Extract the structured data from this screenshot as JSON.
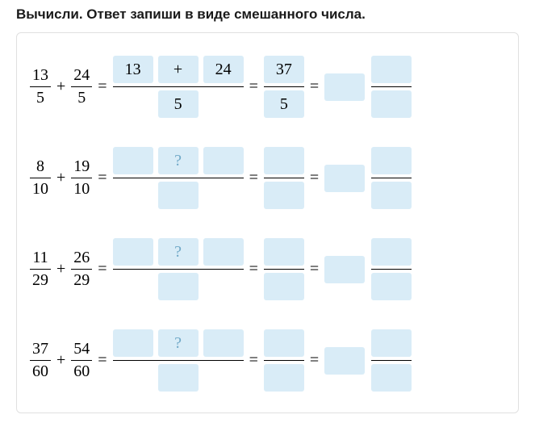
{
  "instruction": "Вычисли. Ответ запиши в виде смешанного числа.",
  "qmark": "?",
  "rows": [
    {
      "a_num": "13",
      "a_den": "5",
      "b_num": "24",
      "b_den": "5",
      "sum_a": "13",
      "sum_op": "+",
      "sum_b": "24",
      "sum_den": "5",
      "res_num": "37",
      "res_den": "5",
      "mix_whole": "",
      "mix_num": "",
      "mix_den": "",
      "filled": true
    },
    {
      "a_num": "8",
      "a_den": "10",
      "b_num": "19",
      "b_den": "10",
      "sum_a": "",
      "sum_op": "?",
      "sum_b": "",
      "sum_den": "",
      "res_num": "",
      "res_den": "",
      "mix_whole": "",
      "mix_num": "",
      "mix_den": "",
      "filled": false
    },
    {
      "a_num": "11",
      "a_den": "29",
      "b_num": "26",
      "b_den": "29",
      "sum_a": "",
      "sum_op": "?",
      "sum_b": "",
      "sum_den": "",
      "res_num": "",
      "res_den": "",
      "mix_whole": "",
      "mix_num": "",
      "mix_den": "",
      "filled": false
    },
    {
      "a_num": "37",
      "a_den": "60",
      "b_num": "54",
      "b_den": "60",
      "sum_a": "",
      "sum_op": "?",
      "sum_b": "",
      "sum_den": "",
      "res_num": "",
      "res_den": "",
      "mix_whole": "",
      "mix_num": "",
      "mix_den": "",
      "filled": false
    }
  ],
  "colors": {
    "box_bg": "#d9ecf7",
    "card_border": "#e0e0e0",
    "text": "#000000",
    "placeholder": "#6fa8c7"
  }
}
